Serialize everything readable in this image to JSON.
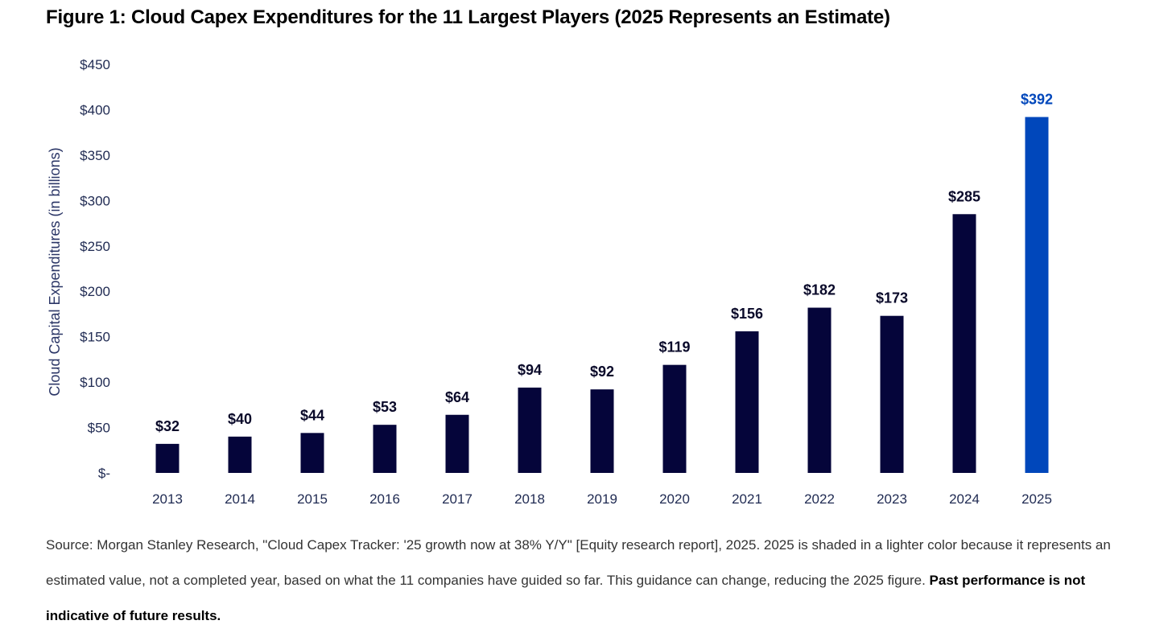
{
  "chart_data": {
    "type": "bar",
    "title": "Figure 1: Cloud Capex Expenditures for the 11 Largest Players (2025 Represents an Estimate)",
    "xlabel": "",
    "ylabel": "Cloud Capital Expenditures (in billions)",
    "ylim": [
      0,
      450
    ],
    "yticks": [
      0,
      50,
      100,
      150,
      200,
      250,
      300,
      350,
      400,
      450
    ],
    "ytick_labels": [
      "$-",
      "$50",
      "$100",
      "$150",
      "$200",
      "$250",
      "$300",
      "$350",
      "$400",
      "$450"
    ],
    "categories": [
      "2013",
      "2014",
      "2015",
      "2016",
      "2017",
      "2018",
      "2019",
      "2020",
      "2021",
      "2022",
      "2023",
      "2024",
      "2025"
    ],
    "values": [
      32,
      40,
      44,
      53,
      64,
      94,
      92,
      119,
      156,
      182,
      173,
      285,
      392
    ],
    "data_labels": [
      "$32",
      "$40",
      "$44",
      "$53",
      "$64",
      "$94",
      "$92",
      "$119",
      "$156",
      "$182",
      "$173",
      "$285",
      "$392"
    ],
    "estimate_category": "2025",
    "grid": false,
    "colors": {
      "actual": "#05053a",
      "estimate": "#0047bb",
      "axis_text": "#1f2a52"
    }
  },
  "caption": {
    "line1": "Source: Morgan Stanley Research, \"Cloud Capex Tracker: '25 growth now at 38% Y/Y\" [Equity research report], 2025. 2025 is shaded in a lighter color because it represents an",
    "line2": "estimated value, not a completed year, based on what the 11 companies have guided so far. This guidance can change, reducing the 2025 figure. ",
    "line2_bold": "Past performance is not",
    "line3_bold": "indicative of future results."
  }
}
